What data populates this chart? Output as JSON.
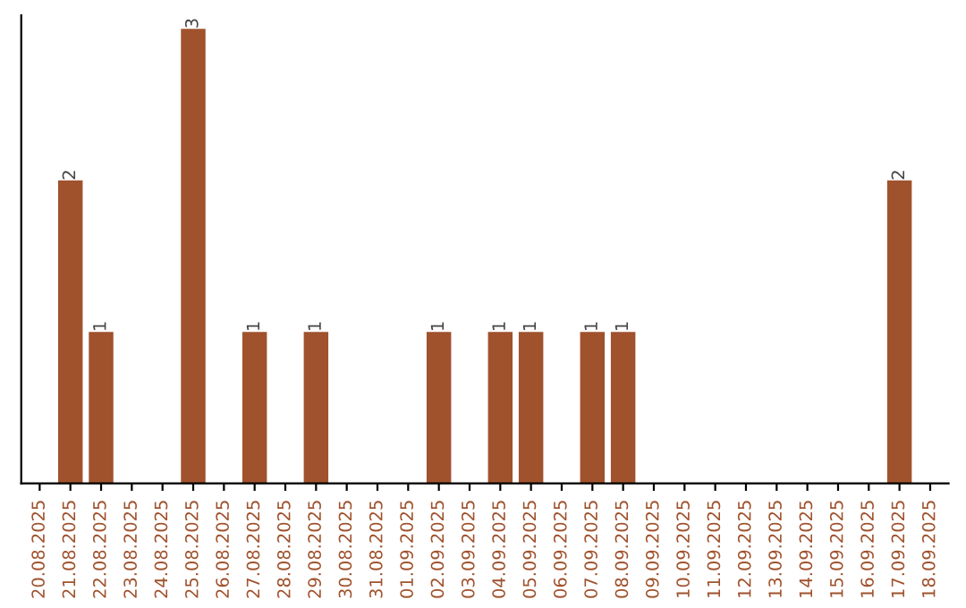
{
  "chart_data": {
    "type": "bar",
    "categories": [
      "20.08.2025",
      "21.08.2025",
      "22.08.2025",
      "23.08.2025",
      "24.08.2025",
      "25.08.2025",
      "26.08.2025",
      "27.08.2025",
      "28.08.2025",
      "29.08.2025",
      "30.08.2025",
      "31.08.2025",
      "01.09.2025",
      "02.09.2025",
      "03.09.2025",
      "04.09.2025",
      "05.09.2025",
      "06.09.2025",
      "07.09.2025",
      "08.09.2025",
      "09.09.2025",
      "10.09.2025",
      "11.09.2025",
      "12.09.2025",
      "13.09.2025",
      "14.09.2025",
      "15.09.2025",
      "16.09.2025",
      "17.09.2025",
      "18.09.2025"
    ],
    "values": [
      0,
      2,
      1,
      0,
      0,
      3,
      0,
      1,
      0,
      1,
      0,
      0,
      0,
      1,
      0,
      1,
      1,
      0,
      1,
      1,
      0,
      0,
      0,
      0,
      0,
      0,
      0,
      0,
      2,
      0
    ],
    "value_labels": [
      null,
      "2",
      "1",
      null,
      null,
      "3",
      null,
      "1",
      null,
      "1",
      null,
      null,
      null,
      "1",
      null,
      "1",
      "1",
      null,
      "1",
      "1",
      null,
      null,
      null,
      null,
      null,
      null,
      null,
      null,
      "2",
      null
    ],
    "color": "#a0522d",
    "tick_labels": "x",
    "grid": false,
    "legend": false
  }
}
